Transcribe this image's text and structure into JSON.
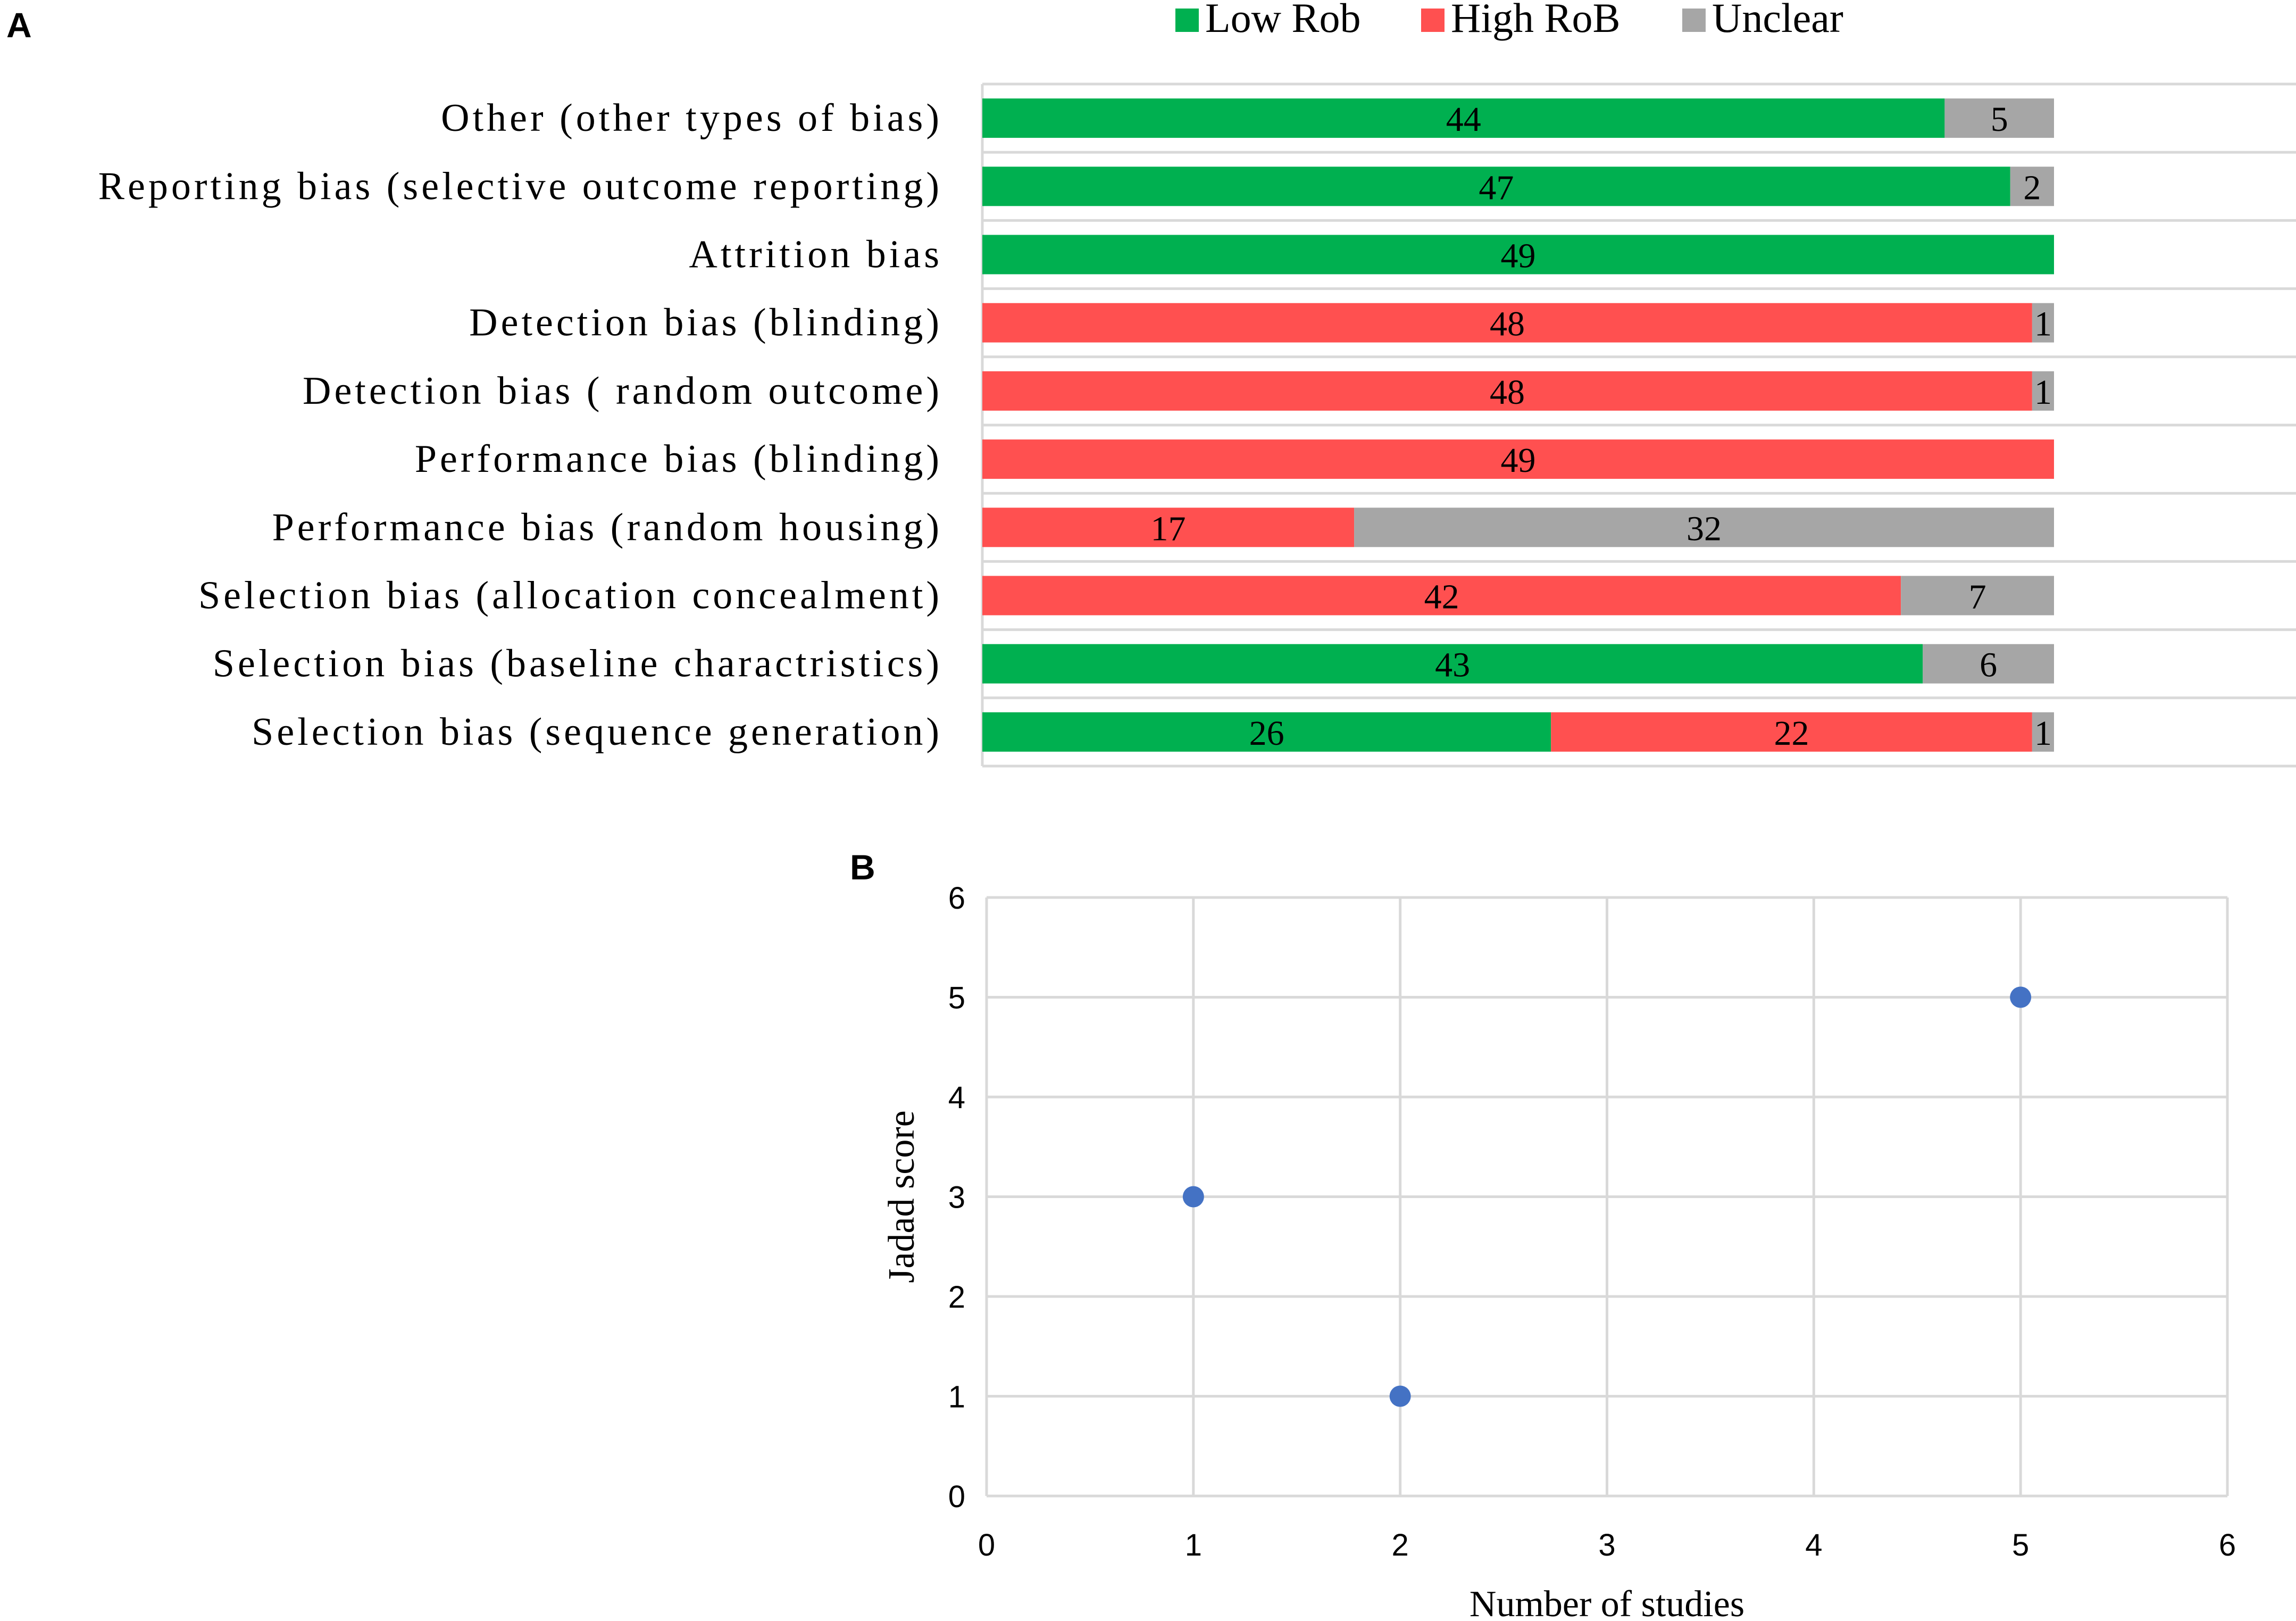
{
  "panels": {
    "a": "A",
    "b": "B"
  },
  "colors": {
    "low": "#00b050",
    "high": "#ff5050",
    "unclear": "#a6a6a6",
    "point": "#4472c4"
  },
  "chart_data": [
    {
      "type": "bar",
      "orientation": "horizontal",
      "stacked": true,
      "panel": "A",
      "legend": [
        "Low Rob",
        "High RoB",
        "Unclear"
      ],
      "legend_position": "top",
      "categories": [
        "Other (other types of bias)",
        "Reporting bias (selective outcome reporting)",
        "Attrition bias",
        "Detection bias (blinding)",
        "Detection bias ( random outcome)",
        "Performance bias (blinding)",
        "Performance bias (random housing)",
        "Selection bias (allocation concealment)",
        "Selection bias (baseline charactristics)",
        "Selection bias (sequence generation)"
      ],
      "series": [
        {
          "name": "Low Rob",
          "color_key": "low",
          "values": [
            44,
            47,
            49,
            0,
            0,
            0,
            0,
            0,
            43,
            26
          ]
        },
        {
          "name": "High RoB",
          "color_key": "high",
          "values": [
            0,
            0,
            0,
            48,
            48,
            49,
            17,
            42,
            0,
            22
          ]
        },
        {
          "name": "Unclear",
          "color_key": "unclear",
          "values": [
            5,
            2,
            0,
            1,
            1,
            0,
            32,
            7,
            6,
            1
          ]
        }
      ],
      "xlim": [
        0,
        49
      ],
      "grid": true
    },
    {
      "type": "scatter",
      "panel": "B",
      "x": [
        1,
        2,
        5
      ],
      "y": [
        3,
        1,
        5
      ],
      "xlabel": "Number of studies",
      "ylabel": "Jadad score",
      "xlim": [
        0,
        6
      ],
      "ylim": [
        0,
        6
      ],
      "xticks": [
        "0",
        "1",
        "2",
        "3",
        "4",
        "5",
        "6"
      ],
      "yticks": [
        "0",
        "1",
        "2",
        "3",
        "4",
        "5",
        "6"
      ],
      "grid": true
    }
  ]
}
